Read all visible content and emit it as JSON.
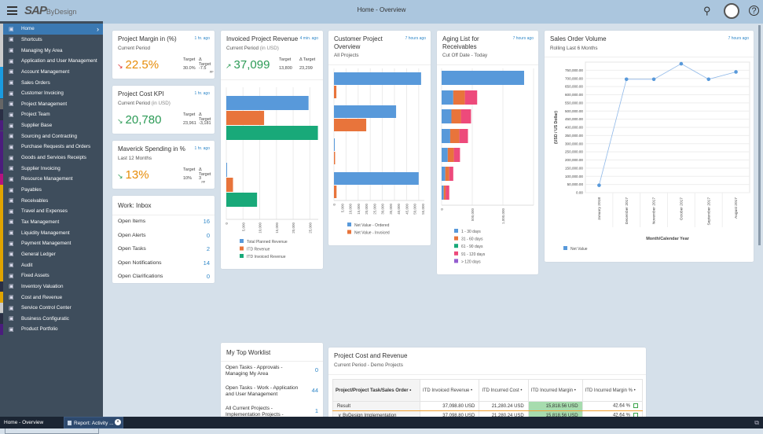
{
  "header": {
    "title": "Home - Overview",
    "logo": "SAP Business ByDesign",
    "logo_main": "SAP",
    "logo_sub": "ByDesign",
    "logo_super": "Business",
    "icons": [
      "menu-icon",
      "search-icon",
      "user-avatar-icon",
      "help-icon"
    ]
  },
  "sidebar": {
    "items": [
      {
        "label": "Home",
        "icon": "home-icon",
        "strip": "#cccccc",
        "active": true
      },
      {
        "label": "Shortcuts",
        "icon": "shortcut-icon",
        "strip": "#cccccc"
      },
      {
        "label": "Managing My Area",
        "icon": "team-icon",
        "strip": "#cccccc"
      },
      {
        "label": "Application and User Management",
        "icon": "user-settings-icon",
        "strip": "#cccccc"
      },
      {
        "label": "Account Management",
        "icon": "account-icon",
        "strip": "#1a9be0"
      },
      {
        "label": "Sales Orders",
        "icon": "sales-order-icon",
        "strip": "#1a9be0"
      },
      {
        "label": "Customer Invoicing",
        "icon": "invoice-icon",
        "strip": "#1a9be0"
      },
      {
        "label": "Project Management",
        "icon": "clipboard-icon",
        "strip": "#666666"
      },
      {
        "label": "Project Team",
        "icon": "project-team-icon",
        "strip": "#2a2f45"
      },
      {
        "label": "Supplier Base",
        "icon": "supplier-icon",
        "strip": "#4b1d7d"
      },
      {
        "label": "Sourcing and Contracting",
        "icon": "sourcing-icon",
        "strip": "#4b1d7d"
      },
      {
        "label": "Purchase Requests and Orders",
        "icon": "purchase-icon",
        "strip": "#4b1d7d"
      },
      {
        "label": "Goods and Services Receipts",
        "icon": "receipt-icon",
        "strip": "#4b1d7d"
      },
      {
        "label": "Supplier Invoicing",
        "icon": "supplier-invoice-icon",
        "strip": "#4b1d7d"
      },
      {
        "label": "Resource Management",
        "icon": "calendar-icon",
        "strip": "#b5137f"
      },
      {
        "label": "Payables",
        "icon": "payables-icon",
        "strip": "#e0a400"
      },
      {
        "label": "Receivables",
        "icon": "receivables-icon",
        "strip": "#e0a400"
      },
      {
        "label": "Travel and Expenses",
        "icon": "travel-icon",
        "strip": "#e0a400"
      },
      {
        "label": "Tax Management",
        "icon": "tax-icon",
        "strip": "#e0a400"
      },
      {
        "label": "Liquidity Management",
        "icon": "liquidity-icon",
        "strip": "#e0a400"
      },
      {
        "label": "Payment Management",
        "icon": "payment-icon",
        "strip": "#e0a400"
      },
      {
        "label": "General Ledger",
        "icon": "ledger-icon",
        "strip": "#e0a400"
      },
      {
        "label": "Audit",
        "icon": "audit-icon",
        "strip": "#e0a400"
      },
      {
        "label": "Fixed Assets",
        "icon": "fixed-assets-icon",
        "strip": "#e0a400"
      },
      {
        "label": "Inventory Valuation",
        "icon": "inventory-icon",
        "strip": "#2a2f45"
      },
      {
        "label": "Cost and Revenue",
        "icon": "cost-revenue-icon",
        "strip": "#e0a400"
      },
      {
        "label": "Service Control Center",
        "icon": "service-icon",
        "strip": "#cccccc"
      },
      {
        "label": "Business Configuratic",
        "icon": "config-icon",
        "strip": "#2a2f45"
      },
      {
        "label": "Product Portfolio",
        "icon": "portfolio-icon",
        "strip": "#4b1d7d"
      }
    ],
    "find_placeholder": "Find"
  },
  "taskbar": {
    "tabs": [
      "Home - Overview",
      "Report: Activity ..."
    ]
  },
  "kpis": [
    {
      "title": "Project Margin in (%)",
      "ago": "1 hr. ago",
      "sub": "Current Period",
      "sub_unit": "",
      "value": "22.5%",
      "trend": "down",
      "value_color": "#e78c07",
      "arrow_color": "#e03030",
      "target_label": "Target",
      "target": "30.0%",
      "delta_label": "Δ Target",
      "delta": "-7.5",
      "delta_unit": "pp"
    },
    {
      "title": "Project Cost KPI",
      "ago": "1 hr. ago",
      "sub": "Current Period",
      "sub_unit": "(in USD)",
      "value": "20,780",
      "trend": "down",
      "value_color": "#2b9a55",
      "arrow_color": "#2b9a55",
      "target_label": "Target",
      "target": "23,961",
      "delta_label": "Δ Target",
      "delta": "-3,181",
      "delta_unit": ""
    },
    {
      "title": "Maverick Spending in %",
      "ago": "1 hr. ago",
      "sub": "Last 12 Months",
      "sub_unit": "",
      "value": "13%",
      "trend": "down",
      "value_color": "#e78c07",
      "arrow_color": "#2b9a55",
      "target_label": "Target",
      "target": "10%",
      "delta_label": "Δ Target",
      "delta": "3",
      "delta_unit": "pp"
    }
  ],
  "inbox": {
    "title": "Work: Inbox",
    "rows": [
      {
        "label": "Open Items",
        "value": "16"
      },
      {
        "label": "Open Alerts",
        "value": "0"
      },
      {
        "label": "Open Tasks",
        "value": "2"
      },
      {
        "label": "Open Notifications",
        "value": "14"
      },
      {
        "label": "Open Clarifications",
        "value": "0"
      }
    ]
  },
  "invoiced": {
    "title": "Invoiced Project Revenue",
    "ago": "4 min. ago",
    "sub": "Current Period",
    "sub_unit": "(in USD)",
    "value": "37,099",
    "value_color": "#2b9a55",
    "target_label": "Target",
    "target": "13,800",
    "delta_label": "Δ Target",
    "delta": "23,299"
  },
  "customer": {
    "title": "Customer Project Overview",
    "title_l1": "Customer Project",
    "title_l2": "Overview",
    "ago": "7 hours ago",
    "sub": "All Projects"
  },
  "aging": {
    "title": "Aging List for Receivables",
    "title_l1": "Aging List for",
    "title_l2": "Receivables",
    "ago": "7 hours ago",
    "sub": "Cut Off Date - Today"
  },
  "sales": {
    "title": "Sales Order Volume",
    "ago": "7 hours ago",
    "sub": "Rolling Last 6 Months"
  },
  "chart_data": [
    {
      "id": "invoiced",
      "type": "bar",
      "orientation": "horizontal",
      "xlim": [
        0,
        27500
      ],
      "ticks": [
        "0",
        "5,000",
        "10,000",
        "15,000",
        "20,000",
        "25,000"
      ],
      "tick_values": [
        0,
        5000,
        10000,
        15000,
        20000,
        25000
      ],
      "legend": "bottom",
      "series": [
        {
          "name": "Total Planned Revenue",
          "color": "#5899da",
          "values": [
            24600,
            200
          ]
        },
        {
          "name": "ITD Revenue",
          "color": "#e8743b",
          "values": [
            11300,
            2000
          ]
        },
        {
          "name": "ITD Invoiced Revenue",
          "color": "#19a979",
          "values": [
            27400,
            9200
          ]
        }
      ]
    },
    {
      "id": "customer",
      "type": "bar",
      "orientation": "horizontal",
      "xlim": [
        0,
        56000
      ],
      "ticks": [
        "0",
        "5,000",
        "10,000",
        "15,000",
        "20,000",
        "25,000",
        "30,000",
        "35,000",
        "40,000",
        "45,000",
        "50,000",
        "55,000"
      ],
      "tick_values": [
        0,
        5000,
        10000,
        15000,
        20000,
        25000,
        30000,
        35000,
        40000,
        45000,
        50000,
        55000
      ],
      "legend": "bottom",
      "series": [
        {
          "name": "Net Value - Ordered",
          "color": "#5899da",
          "values": [
            54000,
            38500,
            200,
            52500
          ]
        },
        {
          "name": "Net Value - Invoiced",
          "color": "#e8743b",
          "values": [
            1500,
            20000,
            700,
            1600
          ]
        }
      ]
    },
    {
      "id": "aging",
      "type": "bar",
      "orientation": "horizontal",
      "stacked": true,
      "xlim": [
        0,
        1500000
      ],
      "ticks": [
        "0",
        "500,000",
        "1,000,000"
      ],
      "tick_values": [
        0,
        500000,
        1000000
      ],
      "legend": "bottom",
      "series": [
        {
          "name": "1 - 30 days",
          "color": "#5899da",
          "values": [
            1346000,
            190000,
            160000,
            140000,
            100000,
            60000,
            35000
          ]
        },
        {
          "name": "31 - 60 days",
          "color": "#e8743b",
          "values": [
            0,
            190000,
            155000,
            150000,
            100000,
            65000,
            30000
          ]
        },
        {
          "name": "61 - 90 days",
          "color": "#19a979",
          "values": [
            0,
            0,
            0,
            0,
            0,
            0,
            0
          ]
        },
        {
          "name": "91 - 120 days",
          "color": "#ed4a7b",
          "values": [
            0,
            200000,
            165000,
            140000,
            100000,
            65000,
            60000
          ]
        },
        {
          "name": "> 120 days",
          "color": "#945ecf",
          "values": [
            0,
            0,
            0,
            0,
            0,
            0,
            0
          ]
        }
      ]
    },
    {
      "id": "sales",
      "type": "line",
      "ylabel": "(USD / US Dollar)",
      "xlabel": "Month/Calendar Year",
      "ylim": [
        0,
        800000
      ],
      "categories": [
        "January 2018",
        "December 2017",
        "November 2017",
        "October 2017",
        "September 2017",
        "August 2017"
      ],
      "yticks": [
        "0.00",
        "50,000.00",
        "100,000.00",
        "150,000.00",
        "200,000.00",
        "250,000.00",
        "300,000.00",
        "350,000.00",
        "400,000.00",
        "450,000.00",
        "500,000.00",
        "550,000.00",
        "600,000.00",
        "650,000.00",
        "700,000.00",
        "750,000.00"
      ],
      "ytick_values": [
        0,
        50000,
        100000,
        150000,
        200000,
        250000,
        300000,
        350000,
        400000,
        450000,
        500000,
        550000,
        600000,
        650000,
        700000,
        750000
      ],
      "grid": true,
      "legend": "bottom-left",
      "series": [
        {
          "name": "Net Value",
          "color": "#5899da",
          "values": [
            45000,
            695000,
            695000,
            790000,
            695000,
            740000
          ]
        }
      ]
    }
  ],
  "worklist": {
    "title": "My Top Worklist",
    "rows": [
      {
        "label": "Open Tasks - Approvals - Managing My Area",
        "value": "0"
      },
      {
        "label": "Open Tasks - Work - Application and User Management",
        "value": "44"
      },
      {
        "label": "All Current Projects - Implementation Projects - Business Configuration",
        "value": "1"
      }
    ]
  },
  "costrev": {
    "title": "Project Cost and Revenue",
    "sub": "Current Period - Demo Projects",
    "columns": [
      "Project/Project Task/Sales Order",
      "ITD Invoiced Revenue",
      "ITD Incurred Cost",
      "ITD Incurred Margin",
      "ITD Incurred Margin %"
    ],
    "rows": [
      [
        "Result",
        "37,098.80 USD",
        "21,280.24 USD",
        "15,818.56 USD",
        "42.64 %"
      ],
      [
        "ByDesign Implementation",
        "37,098.80 USD",
        "21,280.24 USD",
        "15,818.56 USD",
        "42.64 %"
      ],
      [
        "ByDesign",
        "",
        "",
        "",
        ""
      ]
    ]
  }
}
